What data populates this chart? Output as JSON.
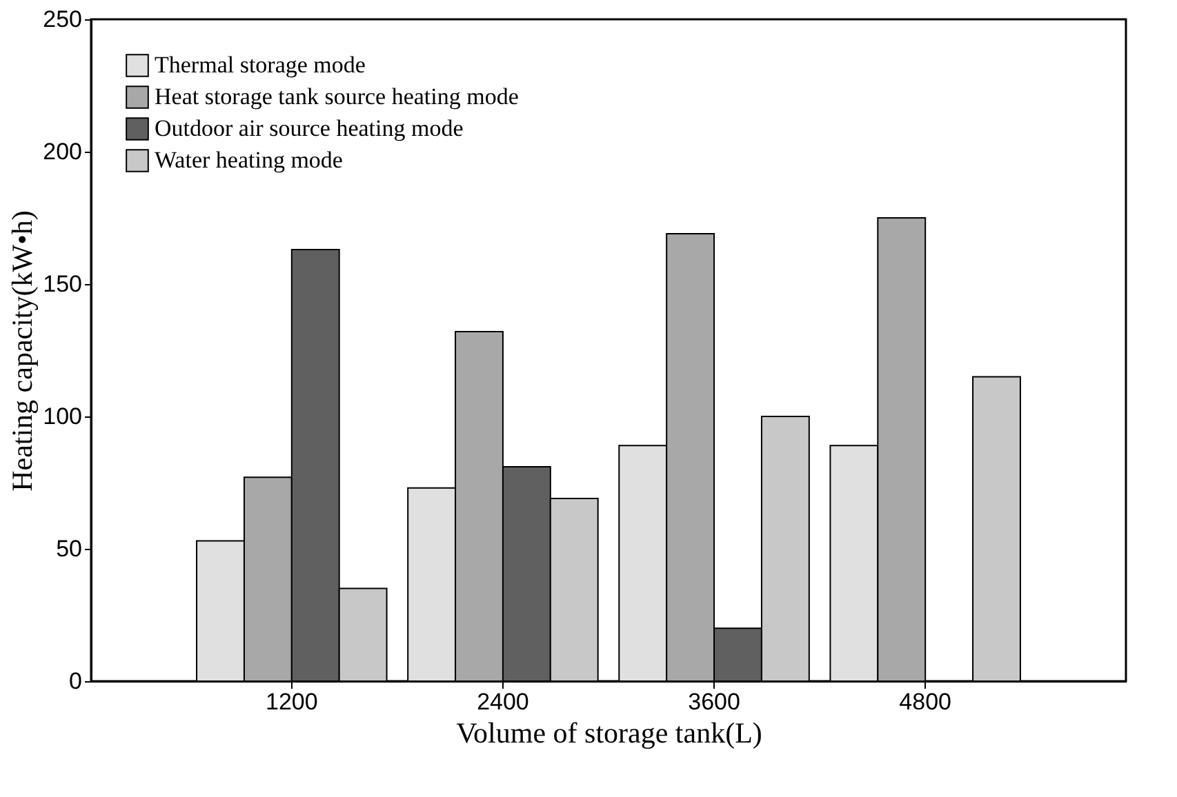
{
  "chart_data": {
    "type": "bar",
    "xlabel": "Volume of storage tank(L)",
    "ylabel": "Heating capacity(kW•h)",
    "categories": [
      "1200",
      "2400",
      "3600",
      "4800"
    ],
    "series": [
      {
        "name": "Thermal storage mode",
        "color": "#e0e0e0",
        "values": [
          53,
          73,
          89,
          89
        ]
      },
      {
        "name": "Heat storage tank source heating mode",
        "color": "#a8a8a8",
        "values": [
          77,
          132,
          169,
          175
        ]
      },
      {
        "name": "Outdoor air source heating mode",
        "color": "#606060",
        "values": [
          163,
          81,
          20,
          null
        ]
      },
      {
        "name": "Water heating mode",
        "color": "#c8c8c8",
        "values": [
          35,
          69,
          100,
          115
        ]
      }
    ],
    "ylim": [
      0,
      250
    ],
    "yticks": [
      0,
      50,
      100,
      150,
      200,
      250
    ],
    "grid": false,
    "legend": "top left"
  }
}
